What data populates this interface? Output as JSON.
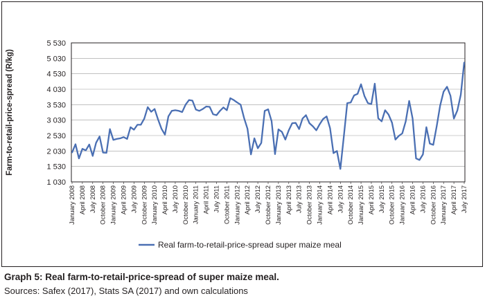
{
  "chart_data": {
    "type": "line",
    "title": "",
    "ylabel": "Farm-to-retail-price-spread (R/kg)",
    "xlabel": "",
    "ylim": [
      1030,
      5530
    ],
    "yticks": [
      "5 530",
      "5 030",
      "4 530",
      "4 030",
      "3 530",
      "3 030",
      "2 530",
      "2 030",
      "1 530",
      "1 030"
    ],
    "ytick_values": [
      5530,
      5030,
      4530,
      4030,
      3530,
      3030,
      2530,
      2030,
      1530,
      1030
    ],
    "grid": "horizontal",
    "legend_position": "bottom",
    "x_tick_labels": [
      "January 2008",
      "April 2008",
      "July 2008",
      "October 2008",
      "January 2009",
      "April 2009",
      "July 2009",
      "October 2009",
      "January 2010",
      "April 2010",
      "July 2010",
      "October 2010",
      "January 2011",
      "April 2011",
      "July 2011",
      "October 2011",
      "January 2012",
      "April 2012",
      "July 2012",
      "October 2012",
      "January 2013",
      "April 2013",
      "July 2013",
      "October 2013",
      "January 2014",
      "April 2014",
      "July 2014",
      "October 2014",
      "January 2015",
      "April 2015",
      "July 2015",
      "October 2015",
      "January 2016",
      "April 2016",
      "July 2016",
      "October 2016",
      "January 2017",
      "April 2017",
      "July 2017"
    ],
    "x_start": "January 2008",
    "x_end": "July 2017",
    "series": [
      {
        "name": "Real farm-to-retail-price-spread super maize meal",
        "color": "#4a6fb3",
        "values": [
          1980,
          2250,
          1790,
          2100,
          2050,
          2240,
          1870,
          2300,
          2500,
          1980,
          1970,
          2740,
          2390,
          2420,
          2440,
          2480,
          2420,
          2800,
          2720,
          2880,
          2880,
          3080,
          3450,
          3300,
          3390,
          3050,
          2750,
          2560,
          3150,
          3330,
          3350,
          3330,
          3290,
          3530,
          3680,
          3660,
          3370,
          3330,
          3390,
          3470,
          3460,
          3220,
          3190,
          3330,
          3440,
          3350,
          3740,
          3680,
          3600,
          3530,
          3100,
          2750,
          1920,
          2440,
          2120,
          2290,
          3330,
          3380,
          3000,
          1930,
          2730,
          2650,
          2400,
          2700,
          2930,
          2940,
          2740,
          3080,
          3190,
          2930,
          2830,
          2700,
          2900,
          3070,
          3150,
          2770,
          1960,
          2030,
          1450,
          2500,
          3580,
          3600,
          3830,
          3880,
          4190,
          3810,
          3580,
          3550,
          4210,
          3090,
          2990,
          3350,
          3210,
          2950,
          2400,
          2520,
          2600,
          2990,
          3650,
          3080,
          1790,
          1740,
          1920,
          2800,
          2270,
          2230,
          2830,
          3500,
          3950,
          4110,
          3820,
          3080,
          3340,
          3850,
          4900
        ]
      }
    ]
  },
  "caption": {
    "title": "Graph 5: Real farm-to-retail-price-spread of super maize meal.",
    "source": "Sources: Safex (2017), Stats SA (2017) and own calculations"
  }
}
